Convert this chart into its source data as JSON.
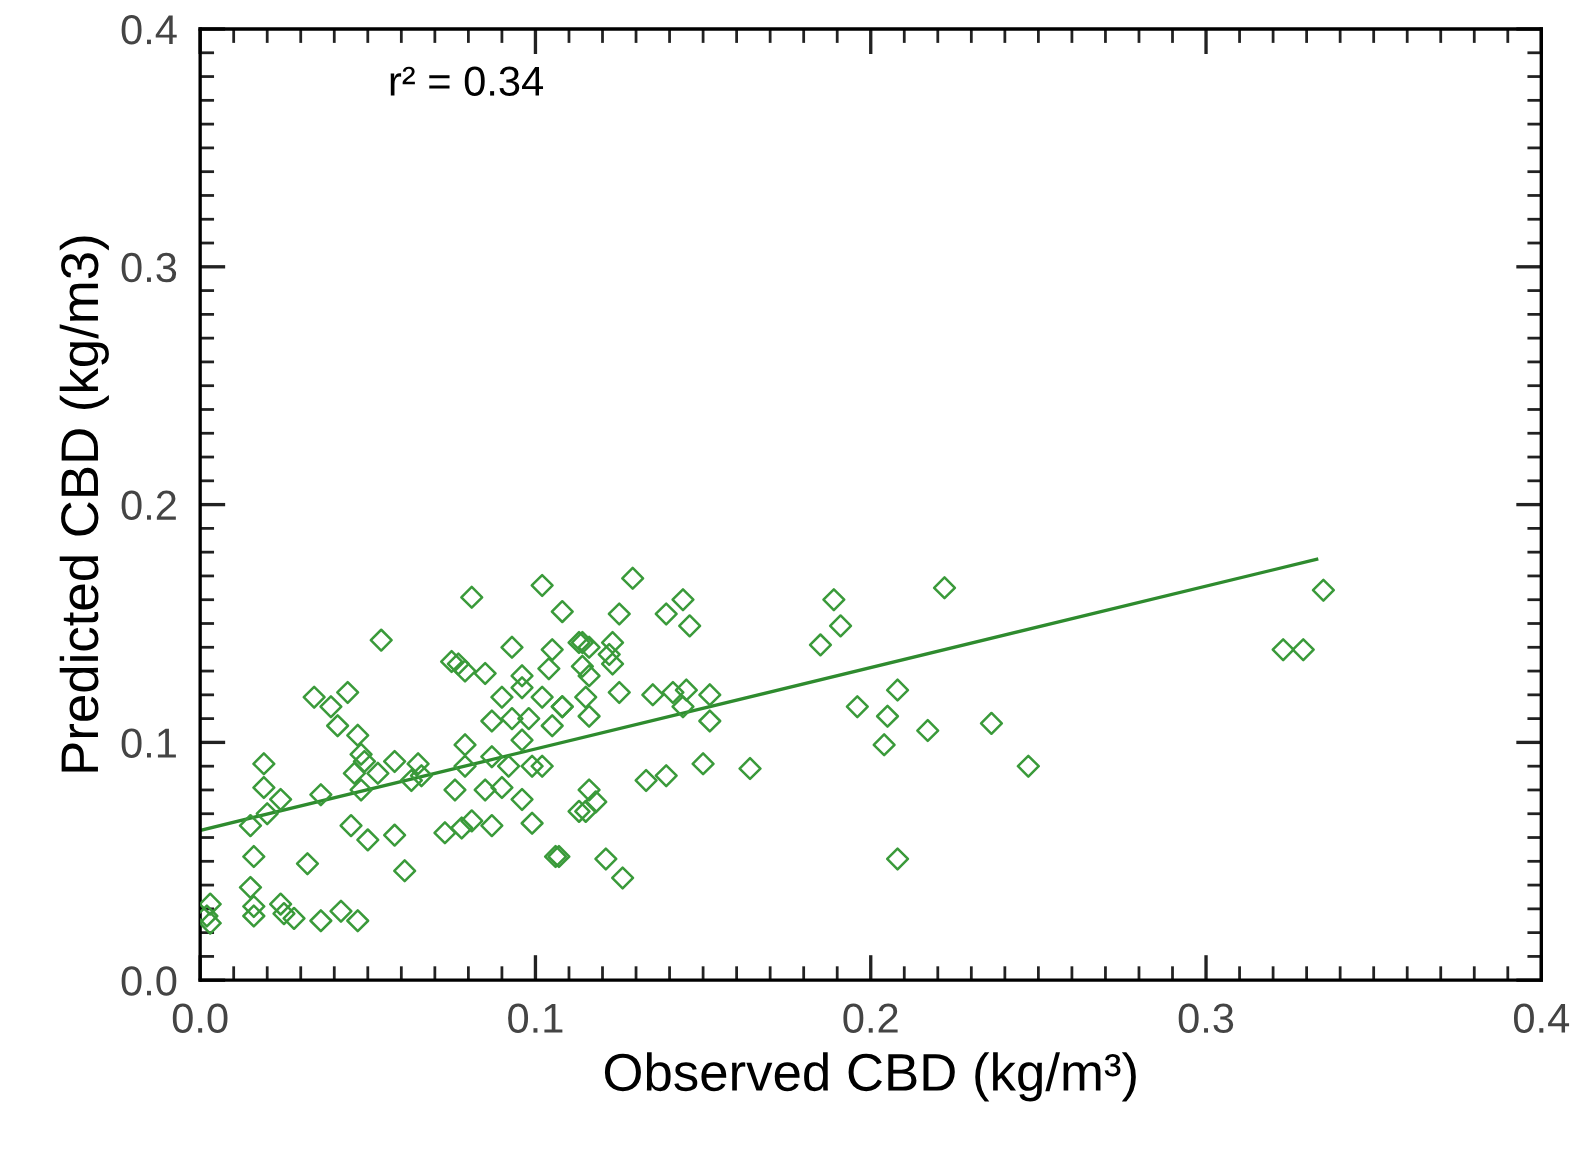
{
  "chart_data": {
    "type": "scatter",
    "xlabel": "Observed CBD (kg/m³)",
    "ylabel": "Predicted CBD (kg/m3)",
    "annotations": [
      "r² = 0.34"
    ],
    "xlim": [
      0,
      0.4
    ],
    "ylim": [
      0,
      0.4
    ],
    "xticks": [
      {
        "value": 0,
        "label": "0.0"
      },
      0.1,
      0.2,
      0.3,
      0.4
    ],
    "yticks": [
      {
        "value": 0,
        "label": "0.0"
      },
      0.1,
      0.2,
      0.3,
      0.4
    ],
    "grid": false,
    "series": [
      {
        "marker": "diamond",
        "color": "#3a9a3a",
        "x": [
          0.125,
          0.139,
          0.144,
          0.146,
          0.185,
          0.191,
          0.189,
          0.196,
          0.205,
          0.208,
          0.204,
          0.217,
          0.236,
          0.208,
          0.247,
          0.222,
          0.323,
          0.329,
          0.335,
          0.152,
          0.15,
          0.164,
          0.139,
          0.133,
          0.116,
          0.115,
          0.118,
          0.121,
          0.126,
          0.107,
          0.116,
          0.125,
          0.115,
          0.116,
          0.108,
          0.135,
          0.141,
          0.145,
          0.152,
          0.144,
          0.114,
          0.116,
          0.123,
          0.122,
          0.123,
          0.081,
          0.108,
          0.054,
          0.093,
          0.105,
          0.113,
          0.075,
          0.079,
          0.085,
          0.077,
          0.104,
          0.096,
          0.114,
          0.09,
          0.096,
          0.102,
          0.108,
          0.034,
          0.039,
          0.044,
          0.041,
          0.087,
          0.093,
          0.098,
          0.105,
          0.047,
          0.079,
          0.096,
          0.048,
          0.049,
          0.058,
          0.065,
          0.066,
          0.087,
          0.092,
          0.099,
          0.102,
          0.019,
          0.053,
          0.079,
          0.046,
          0.063,
          0.019,
          0.024,
          0.02,
          0.015,
          0.036,
          0.048,
          0.076,
          0.085,
          0.09,
          0.096,
          0.113,
          0.081,
          0.099,
          0.087,
          0.073,
          0.078,
          0.045,
          0.05,
          0.058,
          0.016,
          0.032,
          0.061,
          0.106,
          0.015,
          0.016,
          0.024,
          0.025,
          0.016,
          0.028,
          0.036,
          0.042,
          0.047,
          0.003,
          0.002,
          0.003,
          0.102,
          0.129
        ],
        "values": [
          0.154,
          0.154,
          0.16,
          0.149,
          0.141,
          0.149,
          0.16,
          0.115,
          0.111,
          0.122,
          0.099,
          0.105,
          0.108,
          0.051,
          0.09,
          0.165,
          0.139,
          0.139,
          0.164,
          0.109,
          0.091,
          0.089,
          0.086,
          0.084,
          0.08,
          0.071,
          0.075,
          0.051,
          0.043,
          0.052,
          0.128,
          0.121,
          0.119,
          0.111,
          0.115,
          0.12,
          0.121,
          0.122,
          0.12,
          0.115,
          0.142,
          0.14,
          0.142,
          0.137,
          0.133,
          0.161,
          0.155,
          0.143,
          0.14,
          0.139,
          0.142,
          0.134,
          0.13,
          0.129,
          0.133,
          0.131,
          0.128,
          0.132,
          0.119,
          0.123,
          0.119,
          0.115,
          0.119,
          0.115,
          0.121,
          0.107,
          0.109,
          0.11,
          0.11,
          0.107,
          0.103,
          0.099,
          0.101,
          0.095,
          0.092,
          0.092,
          0.091,
          0.086,
          0.094,
          0.09,
          0.09,
          0.09,
          0.091,
          0.087,
          0.09,
          0.087,
          0.084,
          0.081,
          0.076,
          0.07,
          0.065,
          0.078,
          0.08,
          0.08,
          0.08,
          0.081,
          0.076,
          0.071,
          0.067,
          0.066,
          0.065,
          0.062,
          0.064,
          0.065,
          0.059,
          0.061,
          0.052,
          0.049,
          0.046,
          0.052,
          0.039,
          0.031,
          0.032,
          0.028,
          0.027,
          0.026,
          0.025,
          0.029,
          0.025,
          0.032,
          0.027,
          0.024,
          0.166,
          0.169
        ]
      },
      {
        "type": "line",
        "marker": "none",
        "line_style": "solid",
        "color": "#2e8b2e",
        "x": [
          0,
          0.333
        ],
        "values": [
          0.063,
          0.177
        ]
      }
    ]
  }
}
